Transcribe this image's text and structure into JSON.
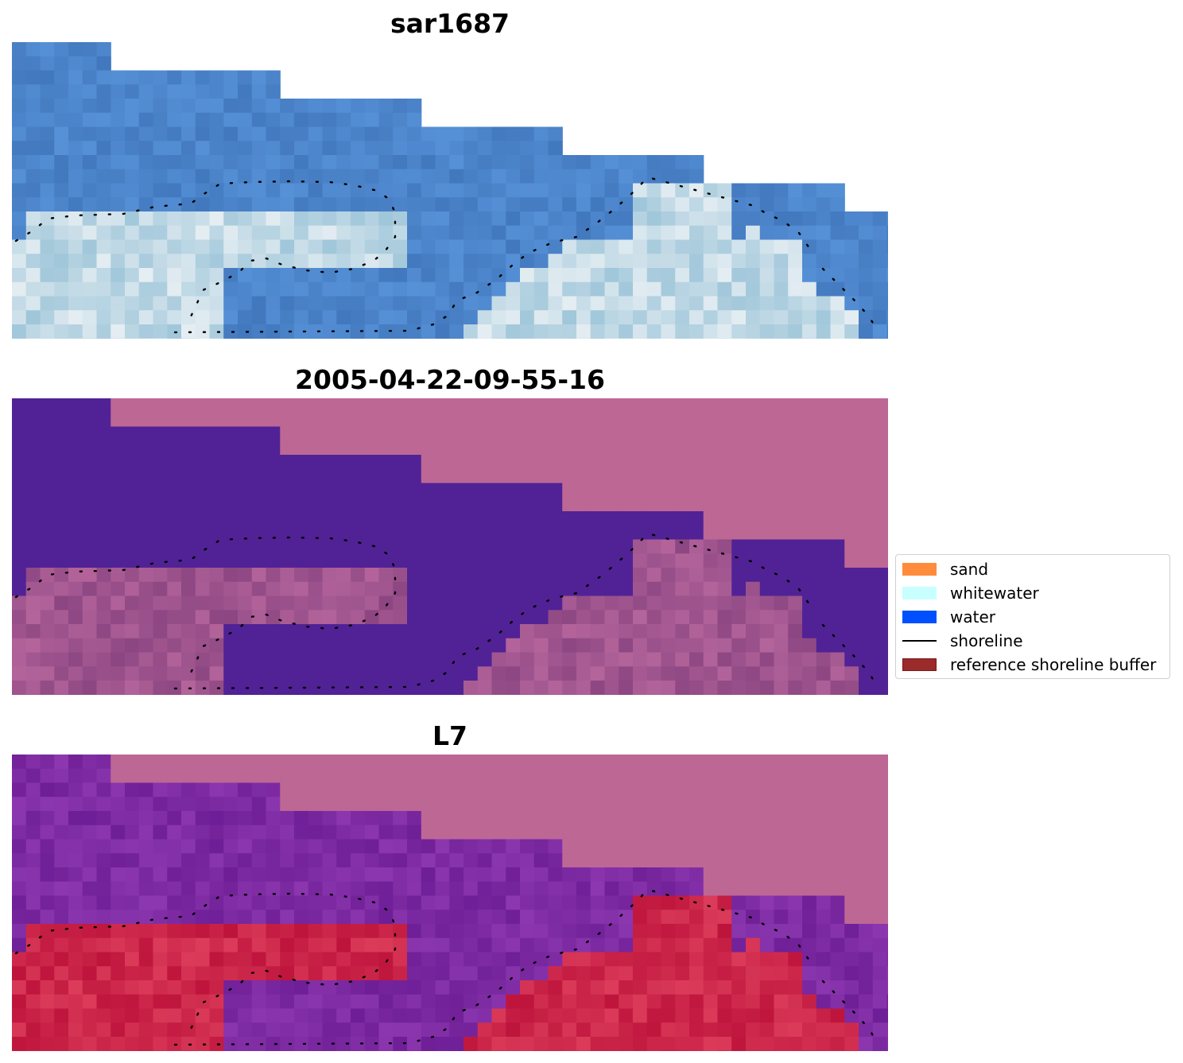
{
  "panels": [
    {
      "title": "sar1687",
      "style": "rgb"
    },
    {
      "title": "2005-04-22-09-55-16",
      "style": "classified"
    },
    {
      "title": "L7",
      "style": "index"
    }
  ],
  "legend": {
    "items": [
      {
        "label": "sand",
        "color": "#ff8c3c",
        "kind": "patch"
      },
      {
        "label": "whitewater",
        "color": "#c8ffff",
        "kind": "patch"
      },
      {
        "label": "water",
        "color": "#0050ff",
        "kind": "patch"
      },
      {
        "label": "shoreline",
        "color": "#000000",
        "kind": "line"
      },
      {
        "label": "reference shoreline buffer",
        "color": "#9b2a2a",
        "kind": "patch-edged"
      }
    ]
  },
  "colors": {
    "nodata_pink": "#bd6795",
    "water_purple": "#512296",
    "rgb_blue": "#4a86c6",
    "whitewater": "#e6ffff",
    "index_red": "#c2103c",
    "index_purple": "#7a2a9e"
  }
}
